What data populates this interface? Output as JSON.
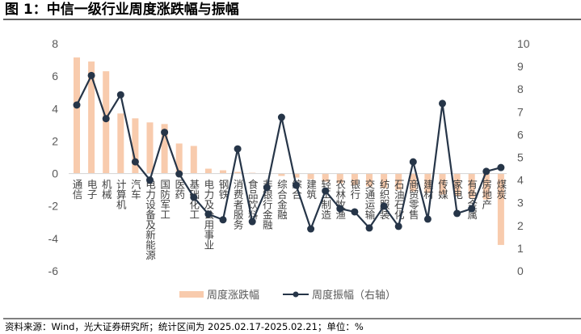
{
  "title": "图 1：中信一级行业周度涨跌幅与振幅",
  "source": "资料来源：Wind，光大证券研究所；统计区间为 2025.02.17-2025.02.21；单位：%",
  "chart_data": {
    "type": "bar+line",
    "categories": [
      "通信",
      "电子",
      "机械",
      "计算机",
      "汽车",
      "电力设备及新能源",
      "国防军工",
      "医药",
      "基础化工",
      "电力及公用事业",
      "钢铁",
      "消费者服务",
      "食品饮料",
      "非银行金融",
      "综合金融",
      "综合",
      "建筑",
      "轻工制造",
      "农林牧渔",
      "银行",
      "交通运输",
      "纺织服装",
      "石油石化",
      "商贸零售",
      "建材",
      "传媒",
      "家电",
      "有色金属",
      "房地产",
      "煤炭"
    ],
    "series": [
      {
        "name": "周度涨跌幅",
        "type": "bar",
        "axis": "left",
        "color": "#F8CBAD",
        "values": [
          7.15,
          6.9,
          6.3,
          3.7,
          3.4,
          3.15,
          3.05,
          1.85,
          1.7,
          0.3,
          0.2,
          0.1,
          0.05,
          0.02,
          -0.15,
          -0.25,
          -0.35,
          -0.5,
          -0.6,
          -0.7,
          -0.8,
          -0.9,
          -1.0,
          -1.1,
          -1.2,
          -1.3,
          -1.4,
          -1.5,
          -1.6,
          -4.4
        ]
      },
      {
        "name": "周度振幅（右轴）",
        "type": "line",
        "axis": "right",
        "color": "#263548",
        "values": [
          7.3,
          8.6,
          6.7,
          7.75,
          4.8,
          4.0,
          6.1,
          4.27,
          3.24,
          2.5,
          2.25,
          5.37,
          2.17,
          3.67,
          6.76,
          3.77,
          1.85,
          3.52,
          2.74,
          2.6,
          1.89,
          2.85,
          1.96,
          4.8,
          2.28,
          7.37,
          2.53,
          2.74,
          4.38,
          4.55
        ]
      }
    ],
    "y_left": {
      "min": -6,
      "max": 8,
      "ticks": [
        -6,
        -4,
        -2,
        0,
        2,
        4,
        6,
        8
      ]
    },
    "y_right": {
      "min": 0,
      "max": 10,
      "ticks": [
        0,
        1,
        2,
        3,
        4,
        5,
        6,
        7,
        8,
        9,
        10
      ]
    },
    "grid": false,
    "legend_position": "bottom"
  }
}
